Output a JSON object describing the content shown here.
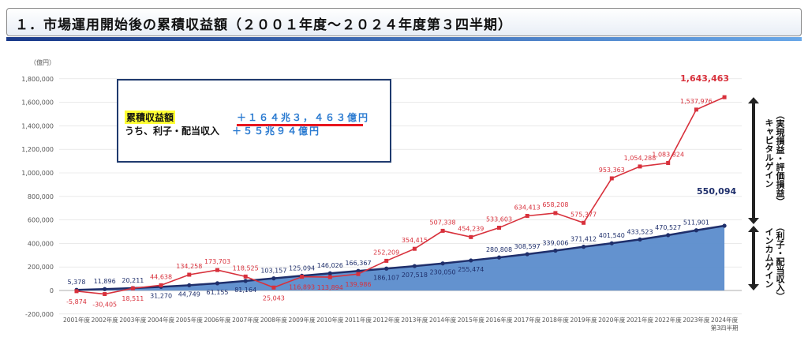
{
  "title": "１．市場運用開始後の累積収益額（２００１年度～２０２４年度第３四半期）",
  "unit_label": "（億円）",
  "info_box": {
    "line1_label": "累積収益額",
    "line1_value": "＋１６４兆３，４６３億円",
    "line2_label": "うち、利子・配当収入",
    "line2_value": "＋５５兆９４億円"
  },
  "side_labels": {
    "upper_line1": "（実現損益・評価損益）",
    "upper_line2": "キャピタルゲイン",
    "lower_line1": "（利子・配当収入）",
    "lower_line2": "インカムゲイン"
  },
  "colors": {
    "cumulative": "#d8313c",
    "income_line": "#1f2f6b",
    "income_area": "#5b8ccc"
  },
  "chart_data": {
    "type": "line",
    "categories": [
      "2001年度",
      "2002年度",
      "2003年度",
      "2004年度",
      "2005年度",
      "2006年度",
      "2007年度",
      "2008年度",
      "2009年度",
      "2010年度",
      "2011年度",
      "2012年度",
      "2013年度",
      "2014年度",
      "2015年度",
      "2016年度",
      "2017年度",
      "2018年度",
      "2019年度",
      "2020年度",
      "2021年度",
      "2022年度",
      "2023年度",
      "2024年度"
    ],
    "last_category_sub": "第3四半期",
    "yticks": [
      "-200,000",
      "0",
      "200,000",
      "400,000",
      "600,000",
      "800,000",
      "1,000,000",
      "1,200,000",
      "1,400,000",
      "1,600,000",
      "1,800,000"
    ],
    "ylim": [
      -200000,
      1800000
    ],
    "series": [
      {
        "key": "cumulative",
        "values": [
          -5874,
          -30405,
          18511,
          44638,
          134258,
          173703,
          118525,
          25043,
          116893,
          113894,
          139986,
          252209,
          354415,
          507338,
          454239,
          533603,
          634413,
          658208,
          575377,
          953363,
          1054288,
          1083824,
          1537976,
          1643463
        ],
        "labels": [
          "-5,874",
          "-30,405",
          "18,511",
          "44,638",
          "134,258",
          "173,703",
          "118,525",
          "25,043",
          "116,893",
          "113,894",
          "139,986",
          "252,209",
          "354,415",
          "507,338",
          "454,239",
          "533,603",
          "634,413",
          "658,208",
          "575,377",
          "953,363",
          "1,054,288",
          "1,083,824",
          "1,537,976",
          "1,643,463"
        ]
      },
      {
        "key": "income",
        "values": [
          5378,
          11896,
          20211,
          31270,
          44749,
          61155,
          81164,
          103157,
          125094,
          146026,
          166367,
          186107,
          207518,
          230050,
          255474,
          280808,
          308597,
          339006,
          371412,
          401540,
          433523,
          470527,
          511901,
          550094
        ],
        "labels": [
          "5,378",
          "11,896",
          "20,211",
          "31,270",
          "44,749",
          "61,155",
          "81,164",
          "103,157",
          "125,094",
          "146,026",
          "166,367",
          "186,107",
          "207,518",
          "230,050",
          "255,474",
          "280,808",
          "308,597",
          "339,006",
          "371,412",
          "401,540",
          "433,523",
          "470,527",
          "511,901",
          "550,094"
        ]
      }
    ]
  }
}
